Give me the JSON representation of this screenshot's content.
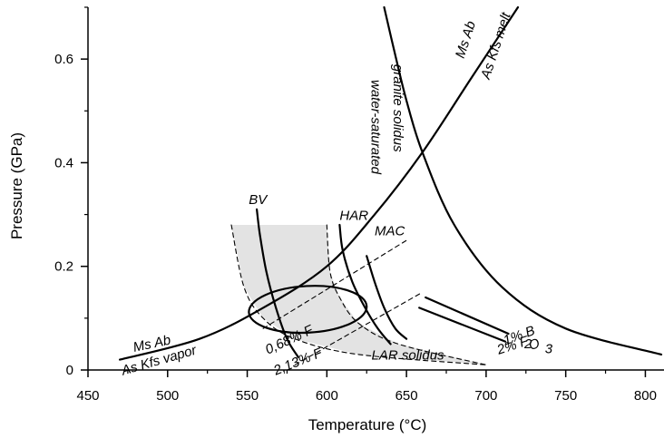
{
  "chart_data": {
    "type": "line",
    "title": "",
    "xlabel": "Temperature (°C)",
    "ylabel": "Pressure (GPa)",
    "xlim": [
      450,
      810
    ],
    "ylim": [
      0,
      0.7
    ],
    "x_ticks": [
      450,
      500,
      550,
      600,
      650,
      700,
      750,
      800
    ],
    "y_ticks": [
      0,
      0.2,
      0.4,
      0.6
    ],
    "x_tick_labels": [
      "450",
      "500",
      "550",
      "600",
      "650",
      "700",
      "750",
      "800"
    ],
    "y_tick_labels": [
      "0",
      "0.2",
      "0.4",
      "0.6"
    ],
    "grid": false,
    "legend": "none",
    "curves": [
      {
        "id": "muscovite-breakdown",
        "style": "solid",
        "x": [
          470,
          520,
          560,
          600,
          630,
          660,
          690,
          720
        ],
        "y": [
          0.02,
          0.06,
          0.12,
          0.2,
          0.3,
          0.42,
          0.56,
          0.7
        ]
      },
      {
        "id": "water-saturated-granite-solidus",
        "style": "solid",
        "x": [
          636,
          642,
          650,
          660,
          680,
          710,
          750,
          810
        ],
        "y": [
          0.7,
          0.62,
          0.52,
          0.42,
          0.28,
          0.16,
          0.08,
          0.03
        ]
      },
      {
        "id": "bv",
        "style": "solid",
        "x": [
          556,
          558,
          562,
          568,
          575,
          582
        ],
        "y": [
          0.31,
          0.26,
          0.19,
          0.12,
          0.06,
          0.025
        ]
      },
      {
        "id": "har",
        "style": "solid",
        "x": [
          608,
          610,
          616,
          624,
          632,
          640
        ],
        "y": [
          0.28,
          0.23,
          0.17,
          0.12,
          0.08,
          0.05
        ]
      },
      {
        "id": "mac",
        "style": "solid",
        "x": [
          625,
          630,
          636,
          643,
          650
        ],
        "y": [
          0.22,
          0.17,
          0.12,
          0.08,
          0.06
        ]
      },
      {
        "id": "b2o3",
        "style": "solid",
        "x": [
          662,
          714
        ],
        "y": [
          0.14,
          0.07
        ]
      },
      {
        "id": "f2",
        "style": "solid",
        "x": [
          658,
          712
        ],
        "y": [
          0.12,
          0.055
        ]
      },
      {
        "id": "f068",
        "style": "dashed",
        "x": [
          560,
          650
        ],
        "y": [
          0.08,
          0.25
        ]
      },
      {
        "id": "f213",
        "style": "dashed",
        "x": [
          580,
          660
        ],
        "y": [
          0.01,
          0.15
        ]
      },
      {
        "id": "lar-solidus-lower",
        "style": "dashed",
        "x": [
          540,
          548,
          560,
          580,
          620,
          700
        ],
        "y": [
          0.28,
          0.16,
          0.1,
          0.06,
          0.03,
          0.01
        ]
      },
      {
        "id": "lar-solidus-upper",
        "style": "dashed",
        "x": [
          600,
          602,
          608,
          620,
          645,
          700
        ],
        "y": [
          0.28,
          0.19,
          0.14,
          0.09,
          0.05,
          0.01
        ]
      }
    ],
    "shaded_region": {
      "fill": "#e3e3e3"
    },
    "ellipse": {
      "center": [
        588,
        0.117
      ],
      "radius_x": 37,
      "radius_y": 0.045
    },
    "annotations": [
      {
        "text": "water-saturated",
        "x": 628,
        "y": 0.56,
        "rotate": 90
      },
      {
        "text": "granite solidus",
        "x": 642,
        "y": 0.59,
        "rotate": 90
      },
      {
        "text": "Ms Ab",
        "x": 686,
        "y": 0.6,
        "rotate": -72
      },
      {
        "text": "As Kfs melt",
        "x": 702,
        "y": 0.56,
        "rotate": -72
      },
      {
        "text": "BV",
        "x": 551,
        "y": 0.32
      },
      {
        "text": "HAR",
        "x": 608,
        "y": 0.29
      },
      {
        "text": "MAC",
        "x": 630,
        "y": 0.26
      },
      {
        "text": "Ms Ab",
        "x": 479,
        "y": 0.035,
        "rotate": -12
      },
      {
        "text": "As Kfs vapor",
        "x": 472,
        "y": -0.01,
        "rotate": -16
      },
      {
        "text": "0,68% F",
        "x": 563,
        "y": 0.03,
        "rotate": -25
      },
      {
        "text": "2,13% F",
        "x": 568,
        "y": -0.01,
        "rotate": -22
      },
      {
        "text": "LAR solidus",
        "x": 628,
        "y": 0.02
      },
      {
        "text": "1% B",
        "x": 712,
        "y": 0.048,
        "rotate": -20
      },
      {
        "text": "2",
        "x": 724,
        "y": 0.042
      },
      {
        "text": "O",
        "x": 728,
        "y": 0.038,
        "rotate": -20
      },
      {
        "text": "3",
        "x": 737,
        "y": 0.032
      },
      {
        "text": "2% F",
        "x": 708,
        "y": 0.03,
        "rotate": -18
      }
    ]
  }
}
